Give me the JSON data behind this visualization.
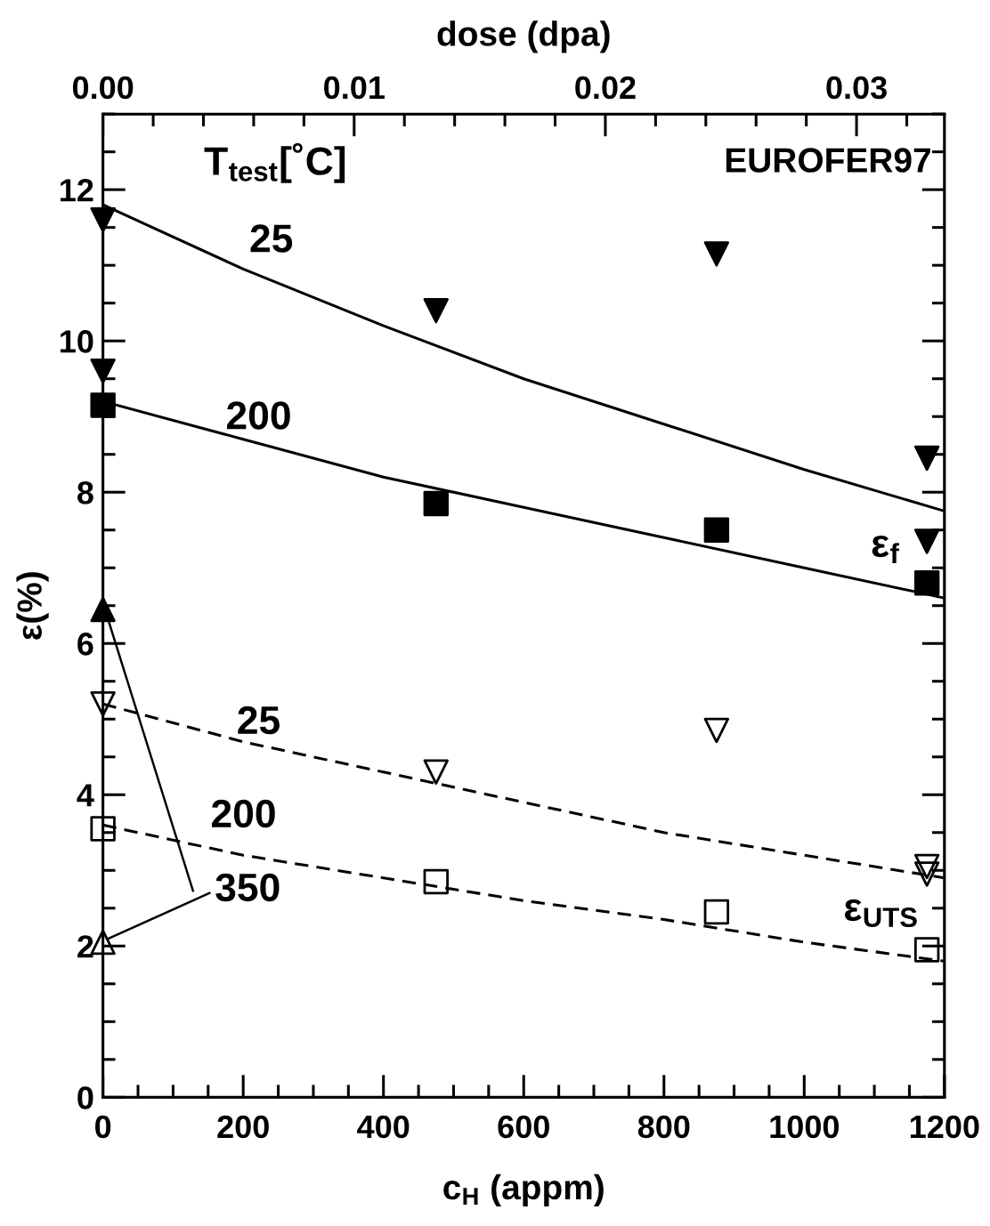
{
  "chart_data": {
    "type": "scatter",
    "xlabel": "c$_{H}$ (appm)",
    "ylabel": "ε(%)",
    "x2label": "dose (dpa)",
    "xlim": [
      0,
      1200
    ],
    "xticks": [
      0,
      200,
      400,
      600,
      800,
      1000,
      1200
    ],
    "ylim": [
      0,
      13
    ],
    "yticks": [
      0,
      2,
      4,
      6,
      8,
      10,
      12
    ],
    "x2lim": [
      0,
      0.0335
    ],
    "x2ticks": [
      {
        "value": 0,
        "label": "0.00"
      },
      {
        "value": 0.01,
        "label": "0.01"
      },
      {
        "value": 0.02,
        "label": "0.02"
      },
      {
        "value": 0.03,
        "label": "0.03"
      }
    ],
    "grid": false,
    "series": [
      {
        "marker": "triangle-down",
        "color": "#000000",
        "x": [
          0,
          0,
          475,
          875,
          1175,
          1175
        ],
        "values": [
          11.6,
          9.6,
          10.4,
          11.15,
          8.45,
          7.35
        ]
      },
      {
        "marker": "square",
        "color": "#000000",
        "x": [
          0,
          475,
          875,
          1175
        ],
        "values": [
          9.15,
          7.85,
          7.5,
          6.8
        ]
      },
      {
        "marker": "triangle",
        "color": "#000000",
        "x": [
          0
        ],
        "values": [
          6.45
        ]
      },
      {
        "marker": "triangle-down-open",
        "color": "#000000",
        "x": [
          0,
          475,
          875,
          1175,
          1175
        ],
        "values": [
          5.2,
          4.3,
          4.85,
          3.05,
          2.95
        ]
      },
      {
        "marker": "square-open",
        "color": "#000000",
        "x": [
          0,
          475,
          875,
          1175
        ],
        "values": [
          3.55,
          2.85,
          2.45,
          1.95
        ]
      },
      {
        "marker": "triangle-open",
        "color": "#000000",
        "x": [
          0
        ],
        "values": [
          2.05
        ]
      },
      {
        "type": "line",
        "line_style": "solid",
        "color": "#000000",
        "x": [
          0,
          200,
          400,
          600,
          800,
          1000,
          1200
        ],
        "values": [
          11.8,
          10.95,
          10.2,
          9.5,
          8.9,
          8.3,
          7.75
        ]
      },
      {
        "type": "line",
        "line_style": "solid",
        "color": "#000000",
        "x": [
          0,
          200,
          400,
          600,
          800,
          1000,
          1200
        ],
        "values": [
          9.2,
          8.7,
          8.2,
          7.8,
          7.4,
          7.0,
          6.6
        ]
      },
      {
        "type": "line",
        "line_style": "dashed",
        "color": "#000000",
        "x": [
          0,
          200,
          400,
          600,
          800,
          1000,
          1200
        ],
        "values": [
          5.2,
          4.7,
          4.3,
          3.9,
          3.5,
          3.2,
          2.9
        ]
      },
      {
        "type": "line",
        "line_style": "dashed",
        "color": "#000000",
        "x": [
          0,
          200,
          400,
          600,
          800,
          1000,
          1200
        ],
        "values": [
          3.6,
          3.2,
          2.9,
          2.6,
          2.35,
          2.05,
          1.8
        ]
      }
    ],
    "annotations": [
      "T$_{test}$[˚C]",
      "EUROFER97",
      "25",
      "200",
      "25",
      "200",
      {
        "text": "350",
        "x": 0,
        "y": 2.05
      },
      "ε$_{f}$",
      "ε$_{UTS}$"
    ]
  }
}
